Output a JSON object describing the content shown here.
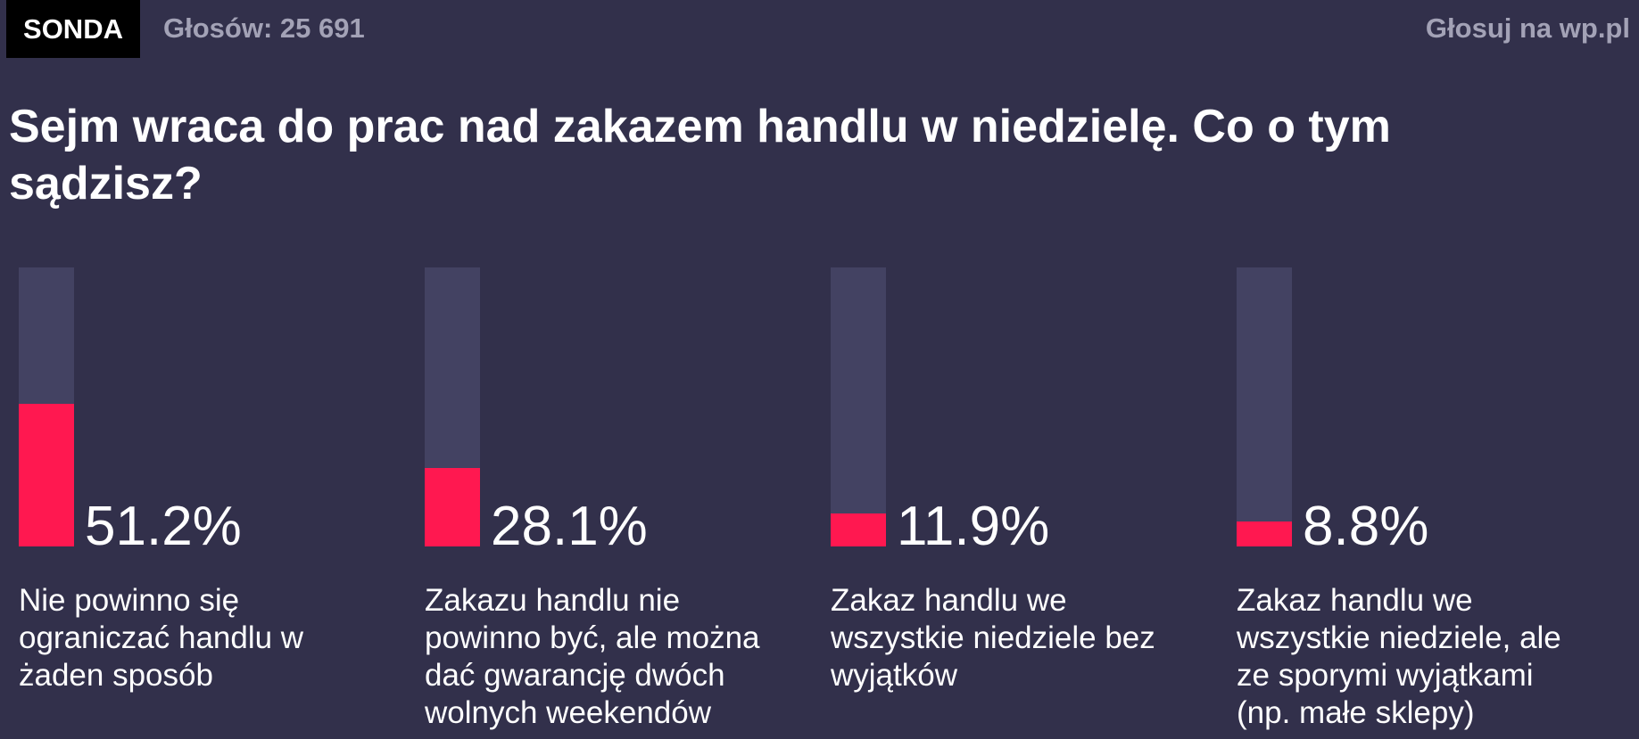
{
  "header": {
    "badge": "SONDA",
    "votes": "Głosów: 25 691",
    "vote_link": "Głosuj na wp.pl"
  },
  "question": "Sejm wraca do prac nad zakazem handlu w niedzielę. Co o tym sądzisz?",
  "colors": {
    "background": "#32304b",
    "bar_track": "#434262",
    "bar_fill": "#ff1850",
    "muted_text": "#a3a2b6"
  },
  "chart_data": {
    "type": "bar",
    "title": "Sejm wraca do prac nad zakazem handlu w niedzielę. Co o tym sądzisz?",
    "ylim": [
      0,
      100
    ],
    "categories": [
      "Nie powinno się ograniczać handlu w żaden sposób",
      "Zakazu handlu nie powinno być, ale można dać gwarancję dwóch wolnych weekendów",
      "Zakaz handlu we wszystkie niedziele bez wyjątków",
      "Zakaz handlu we wszystkie niedziele, ale ze sporymi wyjątkami (np. małe sklepy)"
    ],
    "values": [
      51.2,
      28.1,
      11.9,
      8.8
    ],
    "value_labels": [
      "51.2%",
      "28.1%",
      "11.9%",
      "8.8%"
    ]
  }
}
